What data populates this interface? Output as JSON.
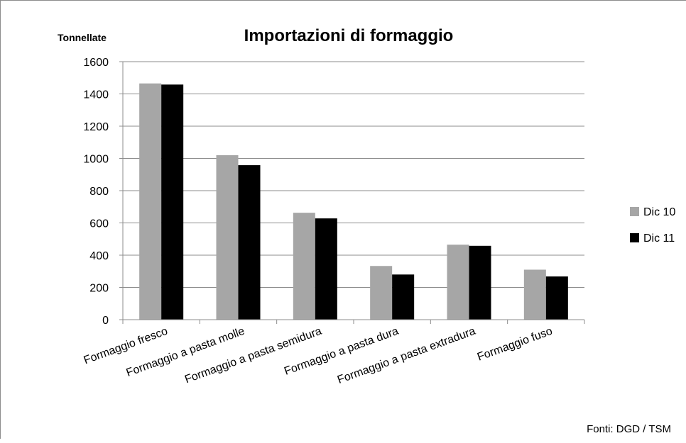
{
  "chart_data": {
    "type": "bar",
    "title": "Importazioni di formaggio",
    "ylabel": "Tonnellate",
    "xlabel": "",
    "ylim": [
      0,
      1600
    ],
    "yticks": [
      0,
      200,
      400,
      600,
      800,
      1000,
      1200,
      1400,
      1600
    ],
    "grid": true,
    "legend_position": "right",
    "categories": [
      "Formaggio  fresco",
      "Formaggio a pasta molle",
      "Formaggio a pasta semidura",
      "Formaggio a pasta dura",
      "Formaggio a pasta extradura",
      "Formaggio fuso"
    ],
    "series": [
      {
        "name": "Dic 10",
        "color": "#a6a6a6",
        "values": [
          1465,
          1020,
          663,
          333,
          465,
          310
        ]
      },
      {
        "name": "Dic 11",
        "color": "#000000",
        "values": [
          1458,
          958,
          628,
          280,
          458,
          268
        ]
      }
    ],
    "source_note": "Fonti:  DGD / TSM"
  }
}
